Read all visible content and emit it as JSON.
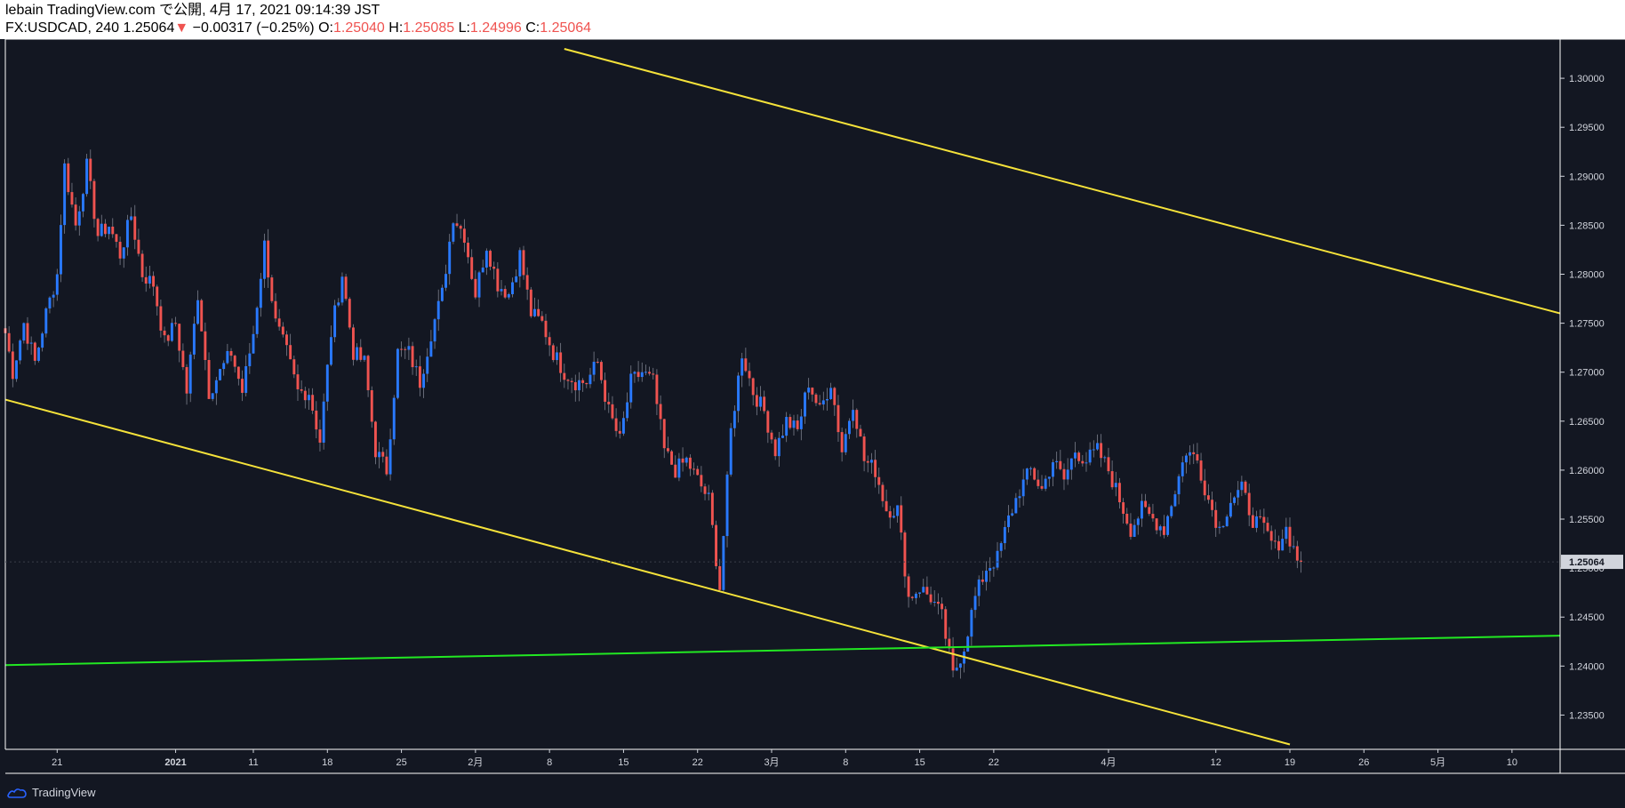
{
  "header": {
    "publish_line": "lebain TradingView.com で公開, 4月 17, 2021 09:14:39 JST",
    "symbol": "FX:USDCAD, 240",
    "last": "1.25064",
    "change_arrow": "▼",
    "change": "−0.00317 (−0.25%)",
    "o_label": "O:",
    "o_value": "1.25040",
    "h_label": "H:",
    "h_value": "1.25085",
    "l_label": "L:",
    "l_value": "1.24996",
    "c_label": "C:",
    "c_value": "1.25064"
  },
  "footer": {
    "brand": "TradingView"
  },
  "colors": {
    "background": "#131722",
    "up": "#2979ff",
    "down": "#ef5350",
    "trend_yellow": "#f5e23a",
    "trend_green": "#22e822",
    "price_label_bg": "#d1d4dc"
  },
  "chart_data": {
    "type": "candlestick",
    "symbol": "FX:USDCAD",
    "interval": "240",
    "ylim": [
      1.2315,
      1.304
    ],
    "x_range_bars": [
      0,
      420
    ],
    "price_ticks": [
      "1.30000",
      "1.29500",
      "1.29000",
      "1.28500",
      "1.28000",
      "1.27500",
      "1.27000",
      "1.26500",
      "1.26000",
      "1.25500",
      "1.25000",
      "1.24500",
      "1.24000",
      "1.23500"
    ],
    "price_tick_values": [
      1.3,
      1.295,
      1.29,
      1.285,
      1.28,
      1.275,
      1.27,
      1.265,
      1.26,
      1.255,
      1.25,
      1.245,
      1.24,
      1.235
    ],
    "time_ticks": [
      {
        "label": "21",
        "bar": 14
      },
      {
        "label": "2021",
        "bar": 46,
        "bold": true
      },
      {
        "label": "11",
        "bar": 67
      },
      {
        "label": "18",
        "bar": 87
      },
      {
        "label": "25",
        "bar": 107
      },
      {
        "label": "2月",
        "bar": 127
      },
      {
        "label": "8",
        "bar": 147
      },
      {
        "label": "15",
        "bar": 167
      },
      {
        "label": "22",
        "bar": 187
      },
      {
        "label": "3月",
        "bar": 207
      },
      {
        "label": "8",
        "bar": 227
      },
      {
        "label": "15",
        "bar": 247
      },
      {
        "label": "22",
        "bar": 267
      },
      {
        "label": "4月",
        "bar": 298
      },
      {
        "label": "12",
        "bar": 327
      },
      {
        "label": "19",
        "bar": 347
      },
      {
        "label": "26",
        "bar": 367
      },
      {
        "label": "5月",
        "bar": 387
      },
      {
        "label": "10",
        "bar": 407
      }
    ],
    "current_price": "1.25064",
    "current_price_value": 1.25064,
    "anchors": [
      [
        0,
        1.274
      ],
      [
        2,
        1.27
      ],
      [
        5,
        1.275
      ],
      [
        8,
        1.271
      ],
      [
        11,
        1.276
      ],
      [
        14,
        1.28
      ],
      [
        16,
        1.291
      ],
      [
        19,
        1.285
      ],
      [
        22,
        1.291
      ],
      [
        25,
        1.284
      ],
      [
        28,
        1.285
      ],
      [
        31,
        1.282
      ],
      [
        34,
        1.286
      ],
      [
        37,
        1.28
      ],
      [
        40,
        1.279
      ],
      [
        43,
        1.273
      ],
      [
        46,
        1.275
      ],
      [
        49,
        1.268
      ],
      [
        52,
        1.278
      ],
      [
        55,
        1.268
      ],
      [
        58,
        1.27
      ],
      [
        61,
        1.272
      ],
      [
        64,
        1.268
      ],
      [
        67,
        1.274
      ],
      [
        70,
        1.283
      ],
      [
        73,
        1.275
      ],
      [
        76,
        1.272
      ],
      [
        79,
        1.268
      ],
      [
        82,
        1.268
      ],
      [
        85,
        1.263
      ],
      [
        88,
        1.274
      ],
      [
        91,
        1.28
      ],
      [
        94,
        1.272
      ],
      [
        97,
        1.271
      ],
      [
        100,
        1.262
      ],
      [
        103,
        1.26
      ],
      [
        106,
        1.272
      ],
      [
        109,
        1.272
      ],
      [
        112,
        1.269
      ],
      [
        115,
        1.274
      ],
      [
        118,
        1.278
      ],
      [
        121,
        1.286
      ],
      [
        124,
        1.284
      ],
      [
        127,
        1.278
      ],
      [
        130,
        1.283
      ],
      [
        133,
        1.279
      ],
      [
        136,
        1.278
      ],
      [
        139,
        1.282
      ],
      [
        142,
        1.276
      ],
      [
        145,
        1.275
      ],
      [
        148,
        1.272
      ],
      [
        151,
        1.27
      ],
      [
        154,
        1.269
      ],
      [
        157,
        1.269
      ],
      [
        160,
        1.271
      ],
      [
        163,
        1.266
      ],
      [
        166,
        1.263
      ],
      [
        169,
        1.269
      ],
      [
        172,
        1.27
      ],
      [
        175,
        1.269
      ],
      [
        178,
        1.262
      ],
      [
        181,
        1.26
      ],
      [
        184,
        1.261
      ],
      [
        187,
        1.259
      ],
      [
        190,
        1.257
      ],
      [
        193,
        1.248
      ],
      [
        196,
        1.264
      ],
      [
        199,
        1.272
      ],
      [
        202,
        1.268
      ],
      [
        205,
        1.266
      ],
      [
        208,
        1.262
      ],
      [
        211,
        1.265
      ],
      [
        214,
        1.264
      ],
      [
        217,
        1.269
      ],
      [
        220,
        1.266
      ],
      [
        223,
        1.269
      ],
      [
        226,
        1.262
      ],
      [
        229,
        1.267
      ],
      [
        232,
        1.261
      ],
      [
        235,
        1.26
      ],
      [
        238,
        1.256
      ],
      [
        241,
        1.256
      ],
      [
        244,
        1.247
      ],
      [
        247,
        1.248
      ],
      [
        250,
        1.247
      ],
      [
        253,
        1.245
      ],
      [
        256,
        1.239
      ],
      [
        259,
        1.242
      ],
      [
        262,
        1.247
      ],
      [
        265,
        1.25
      ],
      [
        268,
        1.251
      ],
      [
        271,
        1.255
      ],
      [
        274,
        1.258
      ],
      [
        277,
        1.26
      ],
      [
        280,
        1.258
      ],
      [
        283,
        1.261
      ],
      [
        286,
        1.259
      ],
      [
        289,
        1.262
      ],
      [
        292,
        1.261
      ],
      [
        295,
        1.262
      ],
      [
        298,
        1.26
      ],
      [
        301,
        1.257
      ],
      [
        304,
        1.254
      ],
      [
        307,
        1.256
      ],
      [
        310,
        1.255
      ],
      [
        313,
        1.254
      ],
      [
        316,
        1.258
      ],
      [
        319,
        1.262
      ],
      [
        322,
        1.261
      ],
      [
        325,
        1.257
      ],
      [
        328,
        1.254
      ],
      [
        331,
        1.257
      ],
      [
        334,
        1.258
      ],
      [
        337,
        1.255
      ],
      [
        340,
        1.254
      ],
      [
        343,
        1.252
      ],
      [
        346,
        1.254
      ],
      [
        349,
        1.251
      ],
      [
        350,
        1.25064
      ]
    ]
  }
}
